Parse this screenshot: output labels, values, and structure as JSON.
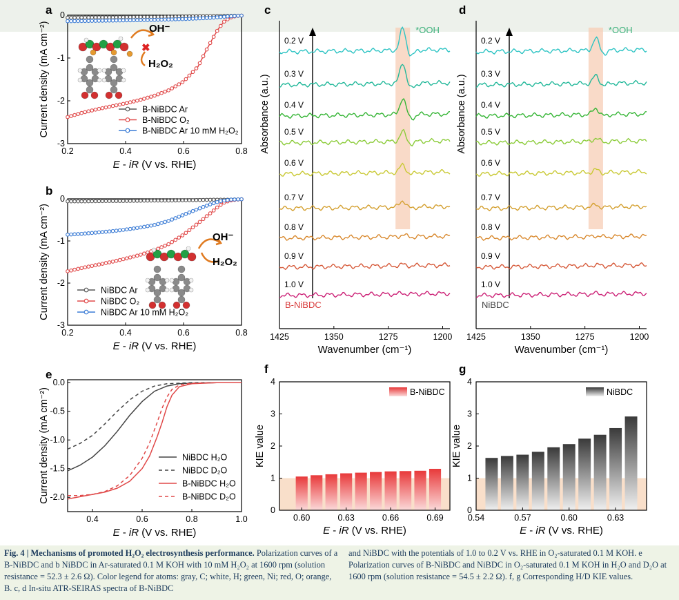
{
  "chart_data": [
    {
      "panel": "a",
      "type": "line",
      "xlabel_parts": [
        "E",
        " - ",
        "iR",
        " (V vs. RHE)"
      ],
      "ylabel": "Current density (mA cm⁻²)",
      "xlim": [
        0.2,
        0.8
      ],
      "ylim": [
        -3,
        0
      ],
      "xticks": [
        "0.2",
        "0.4",
        "0.6",
        "0.8"
      ],
      "xtick_values": [
        0.2,
        0.4,
        0.6,
        0.8
      ],
      "yticks": [
        "0",
        "-1",
        "-2",
        "-3"
      ],
      "ytick_values": [
        0,
        -1,
        -2,
        -3
      ],
      "series": [
        {
          "name": "B-NiBDC Ar",
          "color": "#555555",
          "x": [
            0.2,
            0.25,
            0.3,
            0.35,
            0.4,
            0.45,
            0.5,
            0.55,
            0.6,
            0.65,
            0.7,
            0.75,
            0.8
          ],
          "y": [
            -0.06,
            -0.055,
            -0.05,
            -0.05,
            -0.045,
            -0.04,
            -0.04,
            -0.035,
            -0.03,
            -0.025,
            -0.02,
            -0.015,
            -0.01
          ]
        },
        {
          "name": "B-NiBDC O₂",
          "color": "#e04848",
          "x": [
            0.2,
            0.25,
            0.3,
            0.35,
            0.4,
            0.45,
            0.5,
            0.55,
            0.6,
            0.65,
            0.68,
            0.7,
            0.72,
            0.74,
            0.76,
            0.78,
            0.8
          ],
          "y": [
            -2.38,
            -2.28,
            -2.2,
            -2.13,
            -2.06,
            -1.98,
            -1.88,
            -1.75,
            -1.55,
            -1.2,
            -0.8,
            -0.55,
            -0.32,
            -0.15,
            -0.06,
            -0.02,
            -0.01
          ]
        },
        {
          "name": "B-NiBDC Ar 10 mM H₂O₂",
          "color": "#3a7bd5",
          "x": [
            0.2,
            0.3,
            0.4,
            0.5,
            0.6,
            0.7,
            0.75,
            0.8
          ],
          "y": [
            -0.14,
            -0.13,
            -0.12,
            -0.11,
            -0.09,
            -0.06,
            -0.03,
            -0.01
          ]
        }
      ],
      "annotations": [
        "OH⁻",
        "H₂O₂"
      ]
    },
    {
      "panel": "b",
      "type": "line",
      "xlabel_parts": [
        "E",
        " - ",
        "iR",
        " (V vs. RHE)"
      ],
      "ylabel": "Current density (mA cm⁻²)",
      "xlim": [
        0.2,
        0.8
      ],
      "ylim": [
        -3,
        0
      ],
      "xticks": [
        "0.2",
        "0.4",
        "0.6",
        "0.8"
      ],
      "xtick_values": [
        0.2,
        0.4,
        0.6,
        0.8
      ],
      "yticks": [
        "0",
        "-1",
        "-2",
        "-3"
      ],
      "ytick_values": [
        0,
        -1,
        -2,
        -3
      ],
      "series": [
        {
          "name": "NiBDC Ar",
          "color": "#555555",
          "x": [
            0.2,
            0.25,
            0.3,
            0.35,
            0.4,
            0.45,
            0.5,
            0.55,
            0.6,
            0.65,
            0.7,
            0.75,
            0.8
          ],
          "y": [
            -0.06,
            -0.06,
            -0.055,
            -0.05,
            -0.05,
            -0.045,
            -0.04,
            -0.04,
            -0.035,
            -0.03,
            -0.02,
            -0.02,
            -0.01
          ]
        },
        {
          "name": "NiBDC O₂",
          "color": "#e04848",
          "x": [
            0.2,
            0.25,
            0.3,
            0.35,
            0.4,
            0.45,
            0.5,
            0.55,
            0.6,
            0.65,
            0.7,
            0.72,
            0.74,
            0.76,
            0.78,
            0.8
          ],
          "y": [
            -1.72,
            -1.64,
            -1.57,
            -1.5,
            -1.42,
            -1.33,
            -1.22,
            -1.07,
            -0.85,
            -0.58,
            -0.3,
            -0.18,
            -0.09,
            -0.04,
            -0.02,
            -0.01
          ]
        },
        {
          "name": "NiBDC Ar 10 mM H₂O₂",
          "color": "#3a7bd5",
          "x": [
            0.2,
            0.25,
            0.3,
            0.35,
            0.4,
            0.45,
            0.5,
            0.55,
            0.6,
            0.65,
            0.7,
            0.73,
            0.76,
            0.8
          ],
          "y": [
            -0.85,
            -0.83,
            -0.8,
            -0.77,
            -0.73,
            -0.68,
            -0.62,
            -0.52,
            -0.38,
            -0.24,
            -0.11,
            -0.05,
            -0.02,
            -0.01
          ]
        }
      ],
      "annotations": [
        "OH⁻",
        "H₂O₂"
      ]
    },
    {
      "panel": "c",
      "type": "line",
      "xlabel": "Wavenumber (cm⁻¹)",
      "ylabel": "Absorbance (a.u.)",
      "xlim": [
        1425,
        1190
      ],
      "xticks": [
        "1425",
        "1350",
        "1275",
        "1200"
      ],
      "xtick_values": [
        1425,
        1350,
        1275,
        1200
      ],
      "sample": "B-NiBDC",
      "peak_label": "*OOH",
      "highlight_band": [
        1265,
        1245
      ],
      "potentials": [
        "0.2 V",
        "0.3 V",
        "0.4 V",
        "0.5 V",
        "0.6 V",
        "0.7 V",
        "0.8 V",
        "0.9 V",
        "1.0 V"
      ],
      "peak_heights": [
        1.0,
        0.95,
        0.75,
        0.45,
        0.35,
        0.3,
        0.08,
        0.05,
        0.03
      ],
      "colors": [
        "#2ec4c4",
        "#22b89a",
        "#35b535",
        "#8ccc3a",
        "#c9c934",
        "#d4a030",
        "#d98a30",
        "#d65a3a",
        "#cc2277"
      ]
    },
    {
      "panel": "d",
      "type": "line",
      "xlabel": "Wavenumber (cm⁻¹)",
      "ylabel": "Absorbance (a.u.)",
      "xlim": [
        1425,
        1190
      ],
      "xticks": [
        "1425",
        "1350",
        "1275",
        "1200"
      ],
      "xtick_values": [
        1425,
        1350,
        1275,
        1200
      ],
      "sample": "NiBDC",
      "peak_label": "*OOH",
      "highlight_band": [
        1270,
        1250
      ],
      "potentials": [
        "0.2 V",
        "0.3 V",
        "0.4 V",
        "0.5 V",
        "0.6 V",
        "0.7 V",
        "0.8 V",
        "0.9 V",
        "1.0 V"
      ],
      "peak_heights": [
        0.55,
        0.35,
        0.3,
        0.15,
        0.12,
        0.1,
        0.05,
        0.04,
        0.03
      ],
      "colors": [
        "#2ec4c4",
        "#22b89a",
        "#35b535",
        "#8ccc3a",
        "#c9c934",
        "#d4a030",
        "#d98a30",
        "#d65a3a",
        "#cc2277"
      ]
    },
    {
      "panel": "e",
      "type": "line",
      "xlabel_parts": [
        "E",
        " - ",
        "iR",
        " (V vs. RHE)"
      ],
      "ylabel": "Current density (mA cm⁻²)",
      "xlim": [
        0.3,
        1.0
      ],
      "ylim": [
        -2.25,
        0.05
      ],
      "xticks": [
        "0.4",
        "0.6",
        "0.8",
        "1.0"
      ],
      "xtick_values": [
        0.4,
        0.6,
        0.8,
        1.0
      ],
      "yticks": [
        "0.0",
        "-0.5",
        "-1.0",
        "-1.5",
        "-2.0"
      ],
      "ytick_values": [
        0,
        -0.5,
        -1.0,
        -1.5,
        -2.0
      ],
      "series": [
        {
          "name": "NiBDC H₂O",
          "color": "#444444",
          "dash": false,
          "x": [
            0.3,
            0.35,
            0.4,
            0.45,
            0.5,
            0.55,
            0.6,
            0.65,
            0.7,
            0.75,
            0.8,
            0.9,
            1.0
          ],
          "y": [
            -1.54,
            -1.44,
            -1.3,
            -1.1,
            -0.85,
            -0.57,
            -0.33,
            -0.15,
            -0.06,
            -0.02,
            -0.01,
            0,
            0
          ]
        },
        {
          "name": "NiBDC D₂O",
          "color": "#444444",
          "dash": true,
          "x": [
            0.3,
            0.35,
            0.4,
            0.45,
            0.5,
            0.55,
            0.6,
            0.65,
            0.7,
            0.75,
            0.8,
            0.9,
            1.0
          ],
          "y": [
            -1.16,
            -1.06,
            -0.92,
            -0.72,
            -0.5,
            -0.3,
            -0.15,
            -0.06,
            -0.02,
            -0.01,
            0,
            0,
            0
          ]
        },
        {
          "name": "B-NiBDC H₂O",
          "color": "#e04848",
          "dash": false,
          "x": [
            0.3,
            0.35,
            0.4,
            0.45,
            0.5,
            0.55,
            0.6,
            0.63,
            0.66,
            0.68,
            0.7,
            0.72,
            0.75,
            0.8,
            0.9,
            1.0
          ],
          "y": [
            -2.03,
            -1.99,
            -1.95,
            -1.91,
            -1.84,
            -1.72,
            -1.5,
            -1.28,
            -0.95,
            -0.7,
            -0.42,
            -0.22,
            -0.07,
            -0.02,
            0,
            0
          ]
        },
        {
          "name": "B-NiBDC D₂O",
          "color": "#e04848",
          "dash": true,
          "x": [
            0.3,
            0.35,
            0.4,
            0.45,
            0.5,
            0.55,
            0.6,
            0.63,
            0.66,
            0.68,
            0.7,
            0.72,
            0.75,
            0.8,
            0.9,
            1.0
          ],
          "y": [
            -1.97,
            -1.97,
            -1.95,
            -1.9,
            -1.8,
            -1.62,
            -1.32,
            -1.05,
            -0.7,
            -0.45,
            -0.25,
            -0.12,
            -0.04,
            -0.01,
            0,
            0
          ]
        }
      ]
    },
    {
      "panel": "f",
      "type": "bar",
      "xlabel_parts": [
        "E",
        " - ",
        "iR",
        " (V vs. RHE)"
      ],
      "ylabel": "KIE value",
      "legend": "B-NiBDC",
      "xlim": [
        0.585,
        0.7
      ],
      "ylim": [
        0,
        4
      ],
      "xticks": [
        "0.60",
        "0.63",
        "0.66",
        "0.69"
      ],
      "xtick_values": [
        0.6,
        0.63,
        0.66,
        0.69
      ],
      "yticks": [
        "0",
        "1",
        "2",
        "3",
        "4"
      ],
      "ytick_values": [
        0,
        1,
        2,
        3,
        4
      ],
      "x": [
        0.6,
        0.61,
        0.62,
        0.63,
        0.64,
        0.65,
        0.66,
        0.67,
        0.68,
        0.69
      ],
      "values": [
        1.05,
        1.09,
        1.12,
        1.15,
        1.17,
        1.19,
        1.21,
        1.22,
        1.23,
        1.29
      ]
    },
    {
      "panel": "g",
      "type": "bar",
      "xlabel_parts": [
        "E",
        " - ",
        "iR",
        " (V vs. RHE)"
      ],
      "ylabel": "KIE value",
      "legend": "NiBDC",
      "xlim": [
        0.54,
        0.65
      ],
      "ylim": [
        0,
        4
      ],
      "xticks": [
        "0.54",
        "0.57",
        "0.60",
        "0.63"
      ],
      "xtick_values": [
        0.54,
        0.57,
        0.6,
        0.63
      ],
      "yticks": [
        "0",
        "1",
        "2",
        "3",
        "4"
      ],
      "ytick_values": [
        0,
        1,
        2,
        3,
        4
      ],
      "x": [
        0.55,
        0.56,
        0.57,
        0.58,
        0.59,
        0.6,
        0.61,
        0.62,
        0.63,
        0.64
      ],
      "values": [
        1.63,
        1.69,
        1.73,
        1.82,
        1.96,
        2.06,
        2.23,
        2.35,
        2.56,
        2.92
      ]
    }
  ],
  "caption": {
    "left": {
      "title": "Fig. 4 | Mechanisms of promoted H₂O₂ electrosynthesis performance.",
      "body": " Polarization curves of a B-NiBDC and b NiBDC in Ar-saturated 0.1 M KOH with 10 mM H₂O₂ at 1600 rpm (solution resistance = 52.3 ± 2.6 Ω). Color legend for atoms: gray, C; white, H; green, Ni; red, O; orange, B. c, d In-situ ATR-SEIRAS spectra of B-NiBDC"
    },
    "right": {
      "body": "and NiBDC with the potentials of 1.0 to 0.2 V vs. RHE in O₂-saturated 0.1 M KOH. e Polarization curves of B-NiBDC and NiBDC in O₂-saturated 0.1 M KOH in H₂O and D₂O at 1600 rpm (solution resistance = 54.5 ± 2.2 Ω). f, g Corresponding H/D KIE values."
    }
  }
}
